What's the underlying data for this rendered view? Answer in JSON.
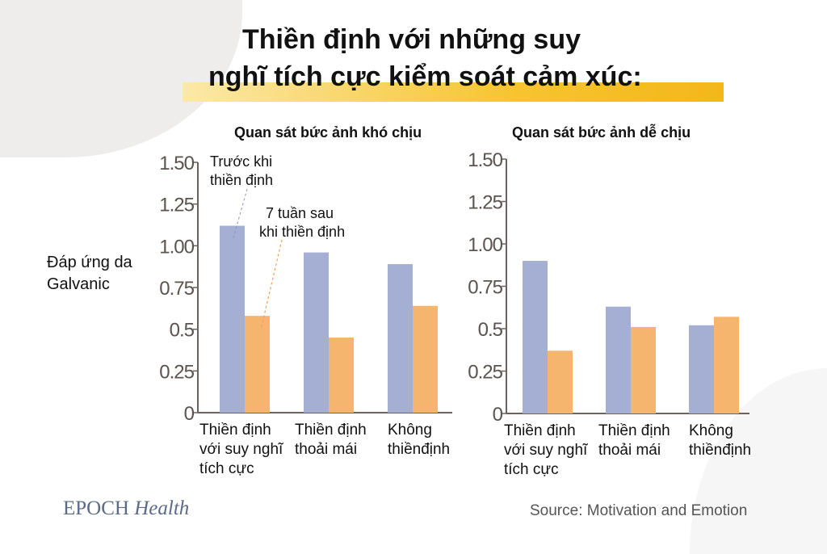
{
  "title_line1": "Thiền định với những suy",
  "title_line2": "nghĩ tích cực kiểm soát cảm xúc:",
  "brand": {
    "name": "EPOCH",
    "suffix": "Health"
  },
  "source": "Source: Motivation and Emotion",
  "colors": {
    "before": "#a5afd3",
    "after": "#f6b56e",
    "highlight": "#f7c531",
    "axis": "#6b625e"
  },
  "chart_data": [
    {
      "type": "bar",
      "title": "Quan sát bức ảnh khó chịu",
      "ylabel": "Đáp ứng da Galvanic",
      "ylim": [
        0,
        1.5
      ],
      "yticks": [
        "0",
        "0.25",
        "0.5",
        "0.75",
        "1.00",
        "1.25",
        "1.50"
      ],
      "categories": [
        [
          "Thiền định",
          "với suy nghĩ",
          "tích cực"
        ],
        [
          "Thiền định",
          "thoải mái"
        ],
        [
          "Không",
          "thiềnđịnh"
        ]
      ],
      "annotations": [
        [
          "Trước khi",
          "thiền định"
        ],
        [
          "7 tuần sau",
          "khi thiền định"
        ]
      ],
      "series": [
        {
          "name": "Trước khi thiền định",
          "values": [
            1.12,
            0.96,
            0.89
          ]
        },
        {
          "name": "7 tuần sau khi thiền định",
          "values": [
            0.58,
            0.45,
            0.64
          ]
        }
      ],
      "grid": false
    },
    {
      "type": "bar",
      "title": "Quan sát bức ảnh dễ chịu",
      "ylabel": "",
      "ylim": [
        0,
        1.5
      ],
      "yticks": [
        "0",
        "0.25",
        "0.5",
        "0.75",
        "1.00",
        "1.25",
        "1.50"
      ],
      "categories": [
        [
          "Thiền định",
          "với suy nghĩ",
          "tích cực"
        ],
        [
          "Thiền định",
          "thoải mái"
        ],
        [
          "Không",
          "thiềnđịnh"
        ]
      ],
      "series": [
        {
          "name": "Trước khi thiền định",
          "values": [
            0.9,
            0.63,
            0.52
          ]
        },
        {
          "name": "7 tuần sau khi thiền định",
          "values": [
            0.37,
            0.51,
            0.57
          ]
        }
      ],
      "grid": false
    }
  ]
}
